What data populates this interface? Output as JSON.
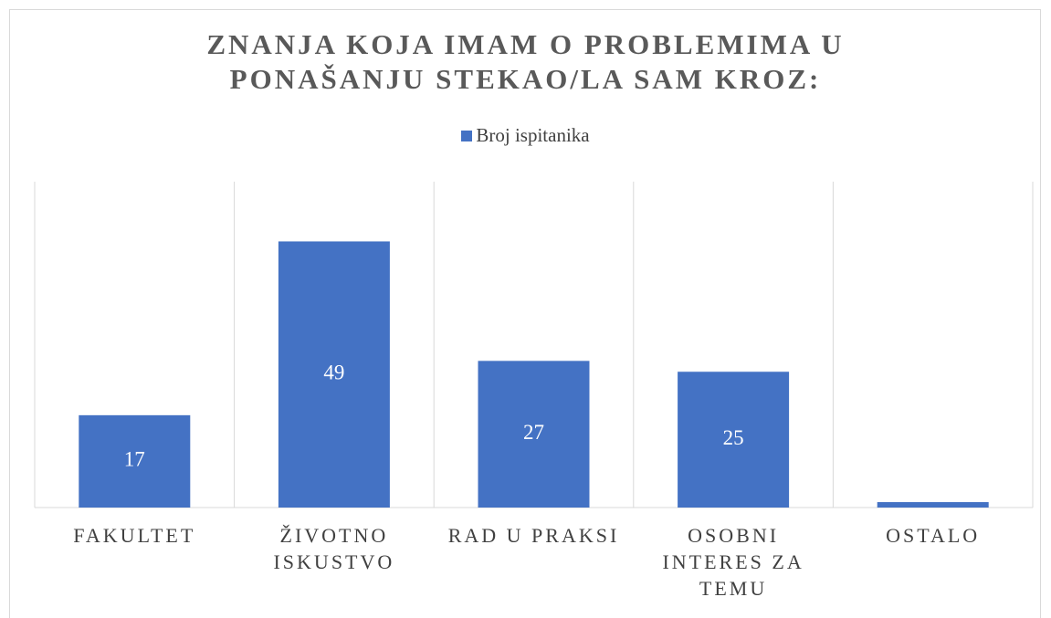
{
  "chart_data": {
    "type": "bar",
    "title": "ZNANJA KOJA IMAM O PROBLEMIMA U PONAŠANJU STEKAO/LA SAM KROZ:",
    "categories": [
      "FAKULTET",
      "ŽIVOTNO ISKUSTVO",
      "RAD U PRAKSI",
      "OSOBNI INTERES ZA TEMU",
      "OSTALO"
    ],
    "series": [
      {
        "name": "Broj ispitanika",
        "color": "#4472c4",
        "values": [
          17,
          49,
          27,
          25,
          1
        ],
        "value_labels": [
          "17",
          "49",
          "27",
          "25",
          null
        ]
      }
    ],
    "ylim": [
      0,
      60
    ],
    "grid": true,
    "legend": "top"
  }
}
